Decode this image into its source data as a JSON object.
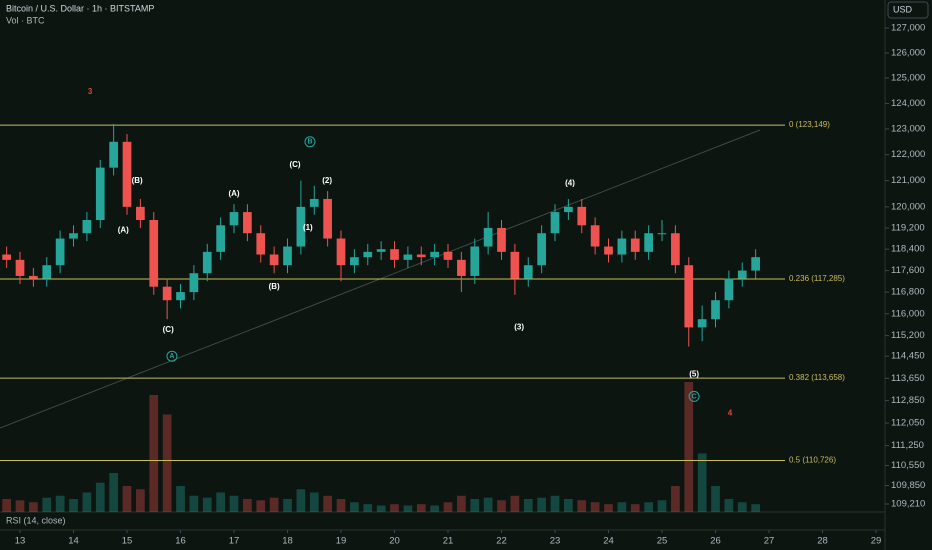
{
  "chart_data": {
    "type": "candlestick",
    "title": "Bitcoin / U.S. Dollar · 1h · BITSTAMP",
    "subtitle": "Vol · BTC",
    "currency": "USD",
    "indicator": "RSI (14, close)",
    "log_scale": true,
    "up_color": "#26a69a",
    "down_color": "#ef5350",
    "x": [
      12.75,
      13,
      13.25,
      13.5,
      13.75,
      14,
      14.25,
      14.5,
      14.75,
      15,
      15.25,
      15.5,
      15.75,
      16,
      16.25,
      16.5,
      16.75,
      17,
      17.25,
      17.5,
      17.75,
      18,
      18.25,
      18.5,
      18.75,
      19,
      19.25,
      19.5,
      19.75,
      20,
      20.25,
      20.5,
      20.75,
      21,
      21.25,
      21.5,
      21.75,
      22,
      22.25,
      22.5,
      22.75,
      23,
      23.25,
      23.5,
      23.75,
      24,
      24.25,
      24.5,
      24.75,
      25,
      25.25,
      25.5,
      25.75,
      26,
      26.25,
      26.5,
      26.75
    ],
    "open": [
      118200,
      118000,
      117400,
      117300,
      117800,
      118800,
      119000,
      119500,
      121500,
      122500,
      120000,
      119500,
      117000,
      116500,
      116800,
      117500,
      118300,
      119300,
      119800,
      119000,
      118200,
      117800,
      118500,
      120000,
      120300,
      118800,
      117800,
      118100,
      118300,
      118400,
      118000,
      118200,
      118100,
      118300,
      118000,
      117400,
      118500,
      119200,
      118300,
      117300,
      117800,
      119000,
      119800,
      120000,
      119300,
      118500,
      118200,
      118800,
      118300,
      119000,
      119000,
      117800,
      115500,
      115800,
      116500,
      117300,
      117600
    ],
    "high": [
      118500,
      118300,
      117700,
      118100,
      119100,
      119300,
      119800,
      121800,
      123200,
      122800,
      120300,
      119800,
      117300,
      117100,
      117800,
      118600,
      119600,
      120100,
      120100,
      119300,
      118500,
      118800,
      121000,
      120800,
      120600,
      119100,
      118400,
      118600,
      118700,
      118700,
      118500,
      118500,
      118600,
      118600,
      118300,
      118800,
      119800,
      119500,
      118600,
      118100,
      119300,
      120100,
      120300,
      120300,
      119600,
      118800,
      119100,
      119100,
      119300,
      119500,
      119300,
      118100,
      116300,
      116800,
      117600,
      117900,
      118400
    ],
    "low": [
      117700,
      117100,
      117000,
      117000,
      117500,
      118500,
      118700,
      119200,
      121200,
      119700,
      119200,
      116700,
      115800,
      116200,
      116500,
      117200,
      118000,
      119000,
      118700,
      117900,
      117500,
      117500,
      118200,
      119700,
      118500,
      117200,
      117500,
      117800,
      118000,
      117700,
      117700,
      117800,
      117800,
      117700,
      116800,
      117100,
      118200,
      118000,
      116700,
      117000,
      117500,
      118700,
      119500,
      119000,
      118200,
      117900,
      117900,
      118000,
      118000,
      118700,
      117500,
      114800,
      115000,
      115500,
      116200,
      117000,
      117300
    ],
    "close": [
      118000,
      117400,
      117300,
      117800,
      118800,
      119000,
      119500,
      121500,
      122500,
      120000,
      119500,
      117000,
      116500,
      116800,
      117500,
      118300,
      119300,
      119800,
      119000,
      118200,
      117800,
      118500,
      120000,
      120300,
      118800,
      117800,
      118100,
      118300,
      118400,
      118000,
      118200,
      118100,
      118300,
      118000,
      117400,
      118500,
      119200,
      118300,
      117300,
      117800,
      119000,
      119800,
      120000,
      119300,
      118500,
      118200,
      118800,
      118300,
      119000,
      119000,
      117800,
      115500,
      115800,
      116500,
      117300,
      117600,
      118100
    ],
    "volume": [
      20,
      18,
      15,
      22,
      25,
      20,
      30,
      45,
      60,
      40,
      35,
      180,
      150,
      40,
      25,
      22,
      30,
      25,
      20,
      18,
      22,
      20,
      35,
      30,
      25,
      20,
      15,
      12,
      10,
      12,
      10,
      12,
      10,
      15,
      25,
      20,
      22,
      18,
      25,
      20,
      22,
      25,
      20,
      18,
      15,
      12,
      15,
      12,
      15,
      18,
      40,
      200,
      90,
      40,
      20,
      15,
      12
    ],
    "xlim": [
      12.626,
      29.168
    ],
    "ylim": [
      108934,
      128133
    ],
    "xticks": [
      13,
      14,
      15,
      16,
      17,
      18,
      19,
      20,
      21,
      22,
      23,
      24,
      25,
      26,
      27,
      28,
      29
    ],
    "yticks": [
      {
        "value": 127000,
        "label": "127,000"
      },
      {
        "value": 126000,
        "label": "126,000"
      },
      {
        "value": 125000,
        "label": "125,000"
      },
      {
        "value": 124000,
        "label": "124,000"
      },
      {
        "value": 123000,
        "label": "123,000"
      },
      {
        "value": 122000,
        "label": "122,000"
      },
      {
        "value": 121000,
        "label": "121,000"
      },
      {
        "value": 120000,
        "label": "120,000"
      },
      {
        "value": 119200,
        "label": "119,200"
      },
      {
        "value": 118400,
        "label": "118,400"
      },
      {
        "value": 117600,
        "label": "117,600"
      },
      {
        "value": 116800,
        "label": "116,800"
      },
      {
        "value": 116000,
        "label": "116,000"
      },
      {
        "value": 115200,
        "label": "115,200"
      },
      {
        "value": 114450,
        "label": "114,450"
      },
      {
        "value": 113650,
        "label": "113,650"
      },
      {
        "value": 112850,
        "label": "112,850"
      },
      {
        "value": 112050,
        "label": "112,050"
      },
      {
        "value": 111250,
        "label": "111,250"
      },
      {
        "value": 110550,
        "label": "110,550"
      },
      {
        "value": 109850,
        "label": "109,850"
      },
      {
        "value": 109210,
        "label": "109,210"
      }
    ],
    "levels": [
      {
        "value": 123149,
        "label": "0 (123,149)"
      },
      {
        "value": 117285,
        "label": "0.236 (117,285)"
      },
      {
        "value": 113658,
        "label": "0.382 (113,658)"
      },
      {
        "value": 110726,
        "label": "0.5 (110,726)"
      }
    ],
    "level_color": "#c9bd5c",
    "annotations": [
      {
        "text": "3",
        "x": 14.31,
        "y": 124450,
        "color": "#e0453a"
      },
      {
        "text": "(B)",
        "x": 15.19,
        "y": 121000,
        "color": "#ffffff"
      },
      {
        "text": "(A)",
        "x": 14.93,
        "y": 119100,
        "color": "#ffffff"
      },
      {
        "text": "(C)",
        "x": 15.77,
        "y": 115400,
        "color": "#ffffff"
      },
      {
        "text": "A",
        "x": 15.84,
        "y": 114450,
        "color": "#26a69a",
        "circled": true
      },
      {
        "text": "(A)",
        "x": 17.0,
        "y": 120500,
        "color": "#ffffff"
      },
      {
        "text": "(B)",
        "x": 17.75,
        "y": 117000,
        "color": "#ffffff"
      },
      {
        "text": "(C)",
        "x": 18.14,
        "y": 121600,
        "color": "#ffffff"
      },
      {
        "text": "B",
        "x": 18.42,
        "y": 122500,
        "color": "#26a69a",
        "circled": true
      },
      {
        "text": "(1)",
        "x": 18.38,
        "y": 119200,
        "color": "#ffffff"
      },
      {
        "text": "(2)",
        "x": 18.74,
        "y": 121000,
        "color": "#ffffff"
      },
      {
        "text": "(3)",
        "x": 22.33,
        "y": 115500,
        "color": "#ffffff"
      },
      {
        "text": "(4)",
        "x": 23.28,
        "y": 120900,
        "color": "#ffffff"
      },
      {
        "text": "(5)",
        "x": 25.6,
        "y": 113800,
        "color": "#ffffff"
      },
      {
        "text": "C",
        "x": 25.6,
        "y": 113000,
        "color": "#26a69a",
        "circled": true
      },
      {
        "text": "4",
        "x": 26.27,
        "y": 112400,
        "color": "#e0453a"
      }
    ]
  }
}
